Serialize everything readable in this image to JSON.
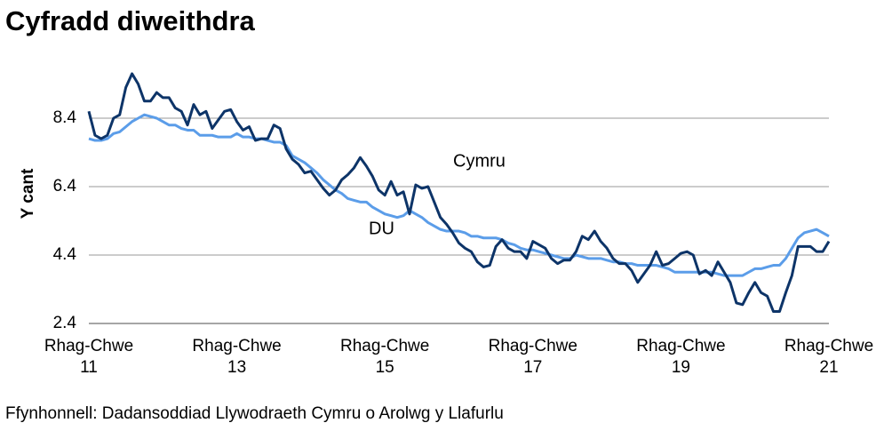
{
  "chart_data": {
    "type": "line",
    "title": "Cyfradd diweithdra",
    "y_label": "Y cant",
    "source": "Ffynhonnell: Dadansoddiad Llywodraeth Cymru o Arolwg y Llafurlu",
    "annotations": [
      "Cymru",
      "DU"
    ],
    "categories": [
      "Rhag-Chwe\n11",
      null,
      null,
      null,
      null,
      null,
      null,
      null,
      null,
      null,
      null,
      null,
      null,
      null,
      null,
      null,
      null,
      null,
      null,
      null,
      null,
      null,
      null,
      null,
      "Rhag-Chwe\n13",
      null,
      null,
      null,
      null,
      null,
      null,
      null,
      null,
      null,
      null,
      null,
      null,
      null,
      null,
      null,
      null,
      null,
      null,
      null,
      null,
      null,
      null,
      null,
      "Rhag-Chwe\n15",
      null,
      null,
      null,
      null,
      null,
      null,
      null,
      null,
      null,
      null,
      null,
      null,
      null,
      null,
      null,
      null,
      null,
      null,
      null,
      null,
      null,
      null,
      null,
      "Rhag-Chwe\n17",
      null,
      null,
      null,
      null,
      null,
      null,
      null,
      null,
      null,
      null,
      null,
      null,
      null,
      null,
      null,
      null,
      null,
      null,
      null,
      null,
      null,
      null,
      null,
      "Rhag-Chwe\n19",
      null,
      null,
      null,
      null,
      null,
      null,
      null,
      null,
      null,
      null,
      null,
      null,
      null,
      null,
      null,
      null,
      null,
      null,
      null,
      null,
      null,
      null,
      null,
      "Rhag-Chwe\n21"
    ],
    "series": [
      {
        "name": "Cymru",
        "color": "#0d3468",
        "values": [
          8.6,
          7.9,
          7.8,
          7.9,
          8.4,
          8.5,
          9.3,
          9.7,
          9.4,
          8.9,
          8.9,
          9.15,
          9.0,
          9.0,
          8.7,
          8.6,
          8.2,
          8.8,
          8.5,
          8.6,
          8.1,
          8.35,
          8.6,
          8.65,
          8.3,
          8.05,
          8.15,
          7.75,
          7.8,
          7.8,
          8.2,
          8.1,
          7.5,
          7.2,
          7.05,
          6.8,
          6.85,
          6.6,
          6.35,
          6.15,
          6.3,
          6.6,
          6.75,
          6.95,
          7.25,
          7.0,
          6.7,
          6.3,
          6.15,
          6.55,
          6.15,
          6.25,
          5.6,
          6.45,
          6.35,
          6.4,
          5.95,
          5.5,
          5.3,
          5.05,
          4.75,
          4.6,
          4.5,
          4.2,
          4.05,
          4.1,
          4.65,
          4.85,
          4.6,
          4.5,
          4.5,
          4.3,
          4.8,
          4.7,
          4.6,
          4.3,
          4.15,
          4.25,
          4.25,
          4.5,
          4.95,
          4.85,
          5.1,
          4.8,
          4.6,
          4.3,
          4.15,
          4.15,
          3.95,
          3.6,
          3.85,
          4.1,
          4.5,
          4.1,
          4.15,
          4.3,
          4.45,
          4.5,
          4.4,
          3.85,
          3.95,
          3.8,
          4.2,
          3.9,
          3.6,
          3.0,
          2.95,
          3.3,
          3.6,
          3.3,
          3.2,
          2.75,
          2.75,
          3.3,
          3.8,
          4.65,
          4.65,
          4.65,
          4.5,
          4.5,
          4.8
        ]
      },
      {
        "name": "DU",
        "color": "#5b9de9",
        "values": [
          7.8,
          7.75,
          7.75,
          7.8,
          7.95,
          8.0,
          8.15,
          8.3,
          8.4,
          8.5,
          8.45,
          8.4,
          8.3,
          8.2,
          8.2,
          8.1,
          8.05,
          8.05,
          7.9,
          7.9,
          7.9,
          7.85,
          7.85,
          7.85,
          7.95,
          7.85,
          7.85,
          7.8,
          7.8,
          7.75,
          7.7,
          7.7,
          7.6,
          7.3,
          7.2,
          7.1,
          6.95,
          6.8,
          6.6,
          6.45,
          6.3,
          6.2,
          6.05,
          6.0,
          5.95,
          5.95,
          5.8,
          5.7,
          5.6,
          5.55,
          5.5,
          5.55,
          5.7,
          5.6,
          5.5,
          5.35,
          5.25,
          5.15,
          5.1,
          5.1,
          5.1,
          5.05,
          4.95,
          4.95,
          4.9,
          4.9,
          4.9,
          4.85,
          4.75,
          4.7,
          4.6,
          4.55,
          4.55,
          4.5,
          4.45,
          4.4,
          4.35,
          4.3,
          4.3,
          4.4,
          4.35,
          4.3,
          4.3,
          4.3,
          4.25,
          4.2,
          4.2,
          4.15,
          4.15,
          4.1,
          4.1,
          4.1,
          4.1,
          4.05,
          4.0,
          3.9,
          3.9,
          3.9,
          3.9,
          3.9,
          3.9,
          3.9,
          3.85,
          3.8,
          3.8,
          3.8,
          3.8,
          3.9,
          4.0,
          4.0,
          4.05,
          4.1,
          4.1,
          4.3,
          4.6,
          4.9,
          5.05,
          5.1,
          5.15,
          5.05,
          4.95
        ]
      }
    ],
    "ylim": [
      2.4,
      10.0
    ],
    "yticks": [
      2.4,
      4.4,
      6.4,
      8.4
    ],
    "grid": true
  }
}
